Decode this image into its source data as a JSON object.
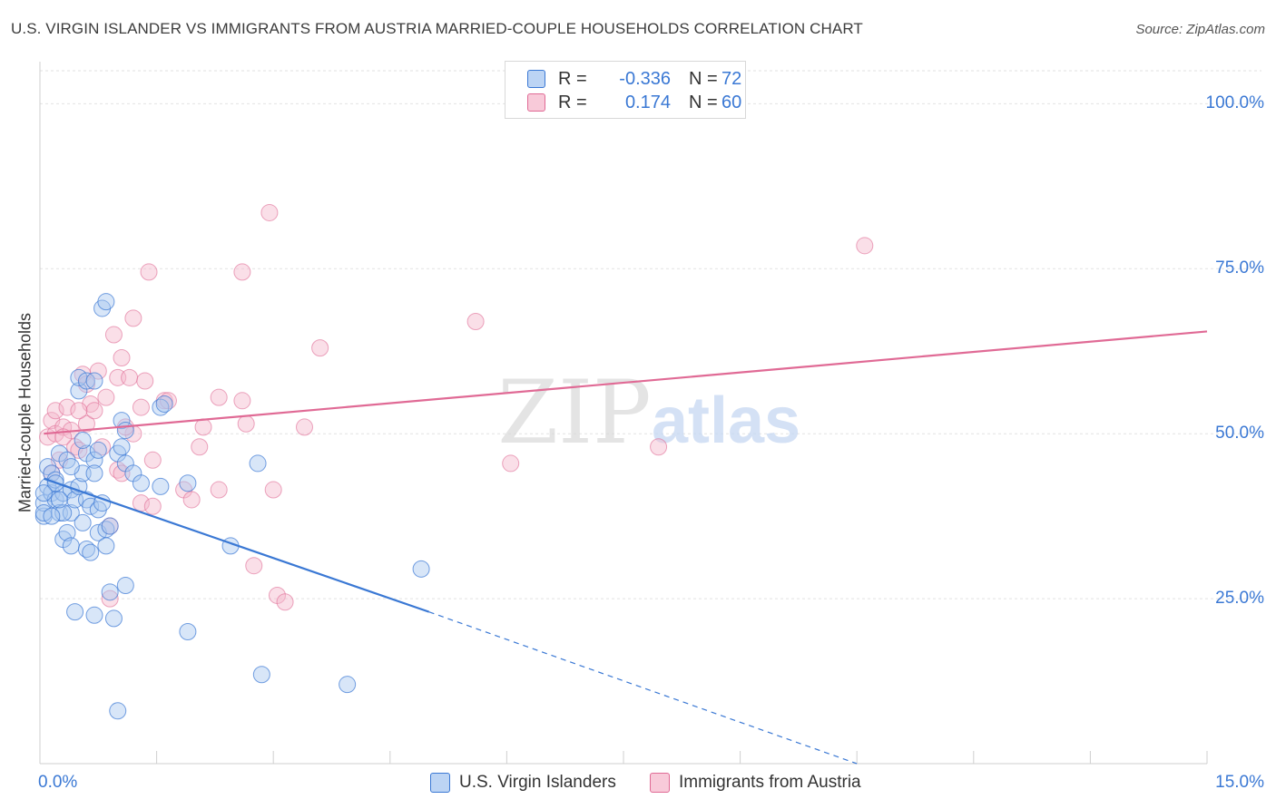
{
  "title": "U.S. VIRGIN ISLANDER VS IMMIGRANTS FROM AUSTRIA MARRIED-COUPLE HOUSEHOLDS CORRELATION CHART",
  "source": "Source: ZipAtlas.com",
  "watermark": {
    "zip": "ZIP",
    "atlas": "atlas"
  },
  "colors": {
    "blue": "#3a78d4",
    "blue_fill": "#a9c8f0",
    "pink": "#e06a95",
    "pink_fill": "#f5b8cc",
    "grid": "#e2e2e2"
  },
  "legend": {
    "rows": [
      {
        "r_label": "R =",
        "r_value": "-0.336",
        "n_label": "N =",
        "n_value": "72"
      },
      {
        "r_label": "R =",
        "r_value": "0.174",
        "n_label": "N =",
        "n_value": "60"
      }
    ]
  },
  "bottom_legend": [
    "U.S. Virgin Islanders",
    "Immigrants from Austria"
  ],
  "chart_data": {
    "type": "scatter",
    "title": "U.S. VIRGIN ISLANDER VS IMMIGRANTS FROM AUSTRIA MARRIED-COUPLE HOUSEHOLDS CORRELATION CHART",
    "ylabel": "Married-couple Households",
    "xlabel": "",
    "xlim": [
      0,
      15
    ],
    "ylim": [
      0,
      105
    ],
    "x_tick_labels": [
      {
        "v": 0,
        "t": "0.0%"
      },
      {
        "v": 15,
        "t": "15.0%"
      }
    ],
    "y_tick_labels": [
      {
        "v": 25,
        "t": "25.0%"
      },
      {
        "v": 50,
        "t": "50.0%"
      },
      {
        "v": 75,
        "t": "75.0%"
      },
      {
        "v": 100,
        "t": "100.0%"
      }
    ],
    "grid": true,
    "series": [
      {
        "name": "U.S. Virgin Islanders",
        "color": "#3a78d4",
        "points": [
          [
            0.05,
            37.5
          ],
          [
            0.05,
            39.5
          ],
          [
            0.05,
            38
          ],
          [
            0.1,
            42
          ],
          [
            0.1,
            45
          ],
          [
            0.15,
            44
          ],
          [
            0.15,
            41
          ],
          [
            0.2,
            43
          ],
          [
            0.2,
            40
          ],
          [
            0.25,
            47
          ],
          [
            0.25,
            38
          ],
          [
            0.3,
            41
          ],
          [
            0.3,
            34
          ],
          [
            0.35,
            46
          ],
          [
            0.35,
            35
          ],
          [
            0.4,
            38
          ],
          [
            0.4,
            41.5
          ],
          [
            0.4,
            33
          ],
          [
            0.45,
            40
          ],
          [
            0.45,
            23
          ],
          [
            0.5,
            56.5
          ],
          [
            0.5,
            58.5
          ],
          [
            0.5,
            42
          ],
          [
            0.55,
            36.5
          ],
          [
            0.55,
            44
          ],
          [
            0.6,
            47
          ],
          [
            0.6,
            40
          ],
          [
            0.6,
            32.5
          ],
          [
            0.65,
            39
          ],
          [
            0.65,
            32
          ],
          [
            0.7,
            46
          ],
          [
            0.7,
            44
          ],
          [
            0.7,
            22.5
          ],
          [
            0.75,
            38.5
          ],
          [
            0.75,
            47.5
          ],
          [
            0.75,
            35
          ],
          [
            0.8,
            39.5
          ],
          [
            0.8,
            69
          ],
          [
            0.85,
            35.5
          ],
          [
            0.85,
            70
          ],
          [
            0.85,
            33
          ],
          [
            0.9,
            36
          ],
          [
            0.9,
            26
          ],
          [
            0.95,
            22
          ],
          [
            1.0,
            47
          ],
          [
            1.05,
            52
          ],
          [
            1.05,
            48
          ],
          [
            1.1,
            27
          ],
          [
            1.1,
            45.5
          ],
          [
            1.1,
            50.5
          ],
          [
            1.2,
            44
          ],
          [
            1.3,
            42.5
          ],
          [
            1.55,
            42
          ],
          [
            1.55,
            54
          ],
          [
            1.6,
            54.5
          ],
          [
            1.9,
            20
          ],
          [
            1.9,
            42.5
          ],
          [
            2.45,
            33
          ],
          [
            2.8,
            45.5
          ],
          [
            2.85,
            13.5
          ],
          [
            3.95,
            12
          ],
          [
            4.9,
            29.5
          ],
          [
            1.0,
            8
          ],
          [
            0.3,
            38
          ],
          [
            0.15,
            37.5
          ],
          [
            0.2,
            42.5
          ],
          [
            0.6,
            58
          ],
          [
            0.05,
            41
          ],
          [
            0.55,
            49
          ],
          [
            0.25,
            40
          ],
          [
            0.4,
            45
          ],
          [
            0.7,
            58
          ]
        ],
        "trend_solid": [
          [
            0.05,
            43.2
          ],
          [
            5.0,
            23
          ]
        ],
        "trend_dashed": [
          [
            5.0,
            23
          ],
          [
            10.5,
            0
          ]
        ]
      },
      {
        "name": "Immigrants from Austria",
        "color": "#e06a95",
        "points": [
          [
            0.1,
            49.5
          ],
          [
            0.15,
            44
          ],
          [
            0.15,
            52
          ],
          [
            0.2,
            53.5
          ],
          [
            0.2,
            50
          ],
          [
            0.25,
            46
          ],
          [
            0.3,
            51
          ],
          [
            0.35,
            54
          ],
          [
            0.4,
            50.5
          ],
          [
            0.45,
            48
          ],
          [
            0.5,
            47.5
          ],
          [
            0.55,
            59
          ],
          [
            0.6,
            51.5
          ],
          [
            0.6,
            57.5
          ],
          [
            0.65,
            54.5
          ],
          [
            0.7,
            53.5
          ],
          [
            0.75,
            59.5
          ],
          [
            0.8,
            48
          ],
          [
            0.85,
            55.5
          ],
          [
            0.9,
            25
          ],
          [
            0.9,
            36
          ],
          [
            0.95,
            65
          ],
          [
            1.0,
            58.5
          ],
          [
            1.0,
            44.5
          ],
          [
            1.05,
            61.5
          ],
          [
            1.05,
            44
          ],
          [
            1.15,
            58.5
          ],
          [
            1.2,
            50
          ],
          [
            1.2,
            67.5
          ],
          [
            1.3,
            54
          ],
          [
            1.3,
            39.5
          ],
          [
            1.35,
            58
          ],
          [
            1.4,
            74.5
          ],
          [
            1.45,
            46
          ],
          [
            1.45,
            39
          ],
          [
            1.6,
            55
          ],
          [
            1.65,
            55
          ],
          [
            1.85,
            41.5
          ],
          [
            1.95,
            40
          ],
          [
            2.05,
            48
          ],
          [
            2.1,
            51
          ],
          [
            2.3,
            55.5
          ],
          [
            2.3,
            41.5
          ],
          [
            2.6,
            74.5
          ],
          [
            2.6,
            55
          ],
          [
            2.65,
            51.5
          ],
          [
            2.75,
            30
          ],
          [
            2.95,
            83.5
          ],
          [
            3.0,
            41.5
          ],
          [
            3.05,
            25.5
          ],
          [
            3.15,
            24.5
          ],
          [
            3.4,
            51
          ],
          [
            3.6,
            63
          ],
          [
            5.6,
            67
          ],
          [
            6.05,
            45.5
          ],
          [
            7.95,
            48
          ],
          [
            10.6,
            78.5
          ],
          [
            0.5,
            53.5
          ],
          [
            0.3,
            49.5
          ],
          [
            1.1,
            51
          ]
        ],
        "trend_solid": [
          [
            0.05,
            50
          ],
          [
            15.0,
            65.5
          ]
        ]
      }
    ]
  }
}
